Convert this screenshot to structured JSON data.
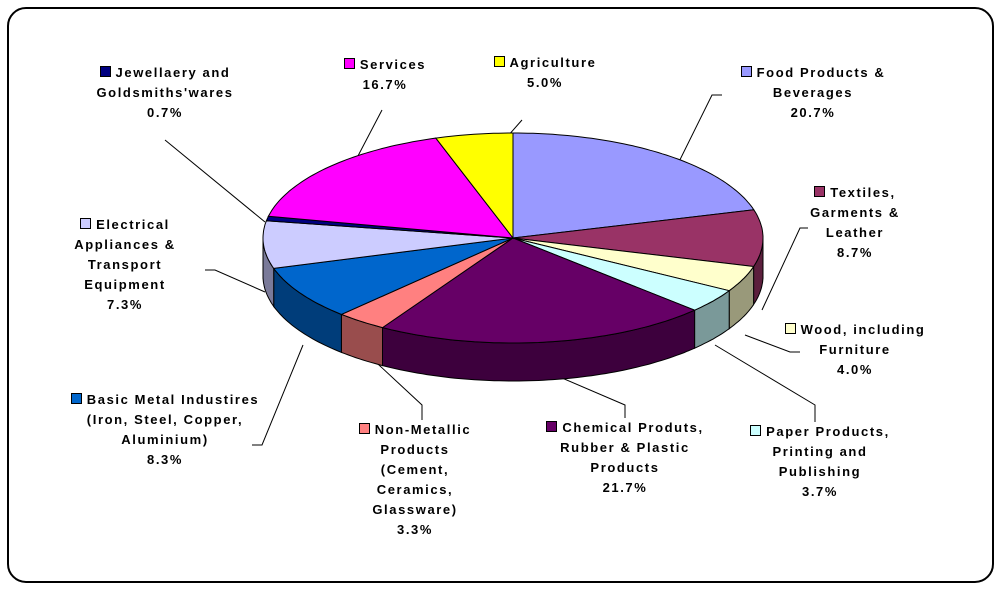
{
  "chart_data": {
    "type": "pie3d",
    "categories": [
      "Food Products & Beverages",
      "Textiles, Garments & Leather",
      "Wood, including Furniture",
      "Paper Products, Printing and Publishing",
      "Chemical Produts, Rubber & Plastic Products",
      "Non-Metallic Products (Cement, Ceramics, Glassware)",
      "Basic Metal Industires (Iron, Steel, Copper, Aluminium)",
      "Electrical Appliances & Transport Equipment",
      "Jewellaery and Goldsmiths'wares",
      "Services",
      "Agriculture"
    ],
    "values": [
      20.7,
      8.7,
      4.0,
      3.7,
      21.7,
      3.3,
      8.3,
      7.3,
      0.7,
      16.7,
      5.0
    ],
    "value_labels": [
      "20.7%",
      "8.7%",
      "4.0%",
      "3.7%",
      "21.7%",
      "3.3%",
      "8.3%",
      "7.3%",
      "0.7%",
      "16.7%",
      "5.0%"
    ],
    "colors": [
      "#9999ff",
      "#993366",
      "#ffffcc",
      "#ccffff",
      "#660066",
      "#ff8080",
      "#0066cc",
      "#ccccff",
      "#000080",
      "#ff00ff",
      "#ffff00"
    ]
  }
}
